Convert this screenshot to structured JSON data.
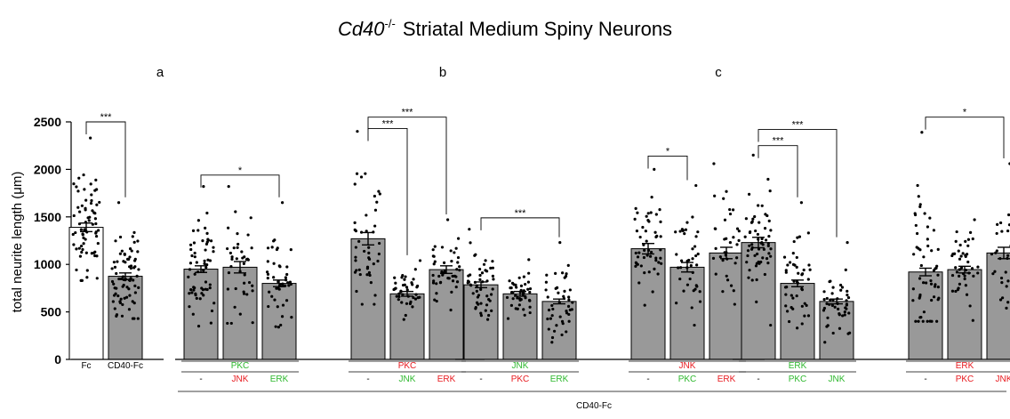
{
  "chart_data": {
    "type": "bar",
    "title": {
      "italic": "Cd40",
      "superscript": "-/-",
      "rest": "Striatal Medium Spiny Neurons"
    },
    "ylabel": "total neurite length (μm)",
    "ylim": [
      0,
      2500
    ],
    "yticks": [
      0,
      500,
      1000,
      1500,
      2000,
      2500
    ],
    "bottom_label": "CD40-Fc",
    "colors": {
      "bar": "#999999",
      "green": "#2db82d",
      "red": "#e8191e",
      "axis": "#000000"
    },
    "panels": [
      {
        "label": "",
        "groups": [
          {
            "header": "",
            "header_color": "",
            "bars": [
              {
                "label": "Fc",
                "label_color": "black",
                "value": 1390,
                "sem": 45,
                "fill": "white",
                "spread": [
                  830,
                  2330
                ],
                "n": 70
              },
              {
                "label": "CD40-Fc",
                "label_color": "black",
                "value": 875,
                "sem": 35,
                "fill": "gray",
                "spread": [
                  430,
                  1650
                ],
                "n": 75
              }
            ],
            "sigs": [
              {
                "from": 0,
                "to": 1,
                "stars": "***",
                "y": 2500
              }
            ]
          }
        ]
      },
      {
        "label": "a",
        "groups": [
          {
            "header": "PKC",
            "header_color": "green",
            "bars": [
              {
                "label": "-",
                "label_color": "black",
                "value": 950,
                "sem": 35,
                "fill": "gray",
                "spread": [
                  350,
                  1820
                ],
                "n": 60
              },
              {
                "label": "JNK",
                "label_color": "red",
                "value": 970,
                "sem": 60,
                "fill": "gray",
                "spread": [
                  380,
                  1820
                ],
                "n": 40
              },
              {
                "label": "ERK",
                "label_color": "green",
                "value": 800,
                "sem": 35,
                "fill": "gray",
                "spread": [
                  340,
                  1650
                ],
                "n": 45
              }
            ],
            "sigs": [
              {
                "from": 0,
                "to": 2,
                "stars": "*",
                "y": 1940
              }
            ]
          },
          {
            "header": "PKC",
            "header_color": "red",
            "bars": [
              {
                "label": "-",
                "label_color": "black",
                "value": 1270,
                "sem": 65,
                "fill": "gray",
                "spread": [
                  580,
                  2400
                ],
                "n": 45
              },
              {
                "label": "JNK",
                "label_color": "green",
                "value": 690,
                "sem": 25,
                "fill": "gray",
                "spread": [
                  420,
                  1040
                ],
                "n": 40
              },
              {
                "label": "ERK",
                "label_color": "red",
                "value": 945,
                "sem": 40,
                "fill": "gray",
                "spread": [
                  520,
                  1470
                ],
                "n": 45
              }
            ],
            "sigs": [
              {
                "from": 0,
                "to": 1,
                "stars": "***",
                "y": 2430
              },
              {
                "from": 0,
                "to": 2,
                "stars": "***",
                "y": 2550
              }
            ]
          }
        ]
      },
      {
        "label": "b",
        "groups": [
          {
            "header": "JNK",
            "header_color": "green",
            "bars": [
              {
                "label": "-",
                "label_color": "black",
                "value": 785,
                "sem": 30,
                "fill": "gray",
                "spread": [
                  420,
                  1370
                ],
                "n": 50
              },
              {
                "label": "PKC",
                "label_color": "red",
                "value": 690,
                "sem": 25,
                "fill": "gray",
                "spread": [
                  430,
                  1050
                ],
                "n": 45
              },
              {
                "label": "ERK",
                "label_color": "green",
                "value": 610,
                "sem": 25,
                "fill": "gray",
                "spread": [
                  180,
                  1230
                ],
                "n": 45
              }
            ],
            "sigs": [
              {
                "from": 0,
                "to": 2,
                "stars": "***",
                "y": 1490
              }
            ]
          },
          {
            "header": "JNK",
            "header_color": "red",
            "bars": [
              {
                "label": "-",
                "label_color": "black",
                "value": 1165,
                "sem": 55,
                "fill": "gray",
                "spread": [
                  570,
                  2000
                ],
                "n": 50
              },
              {
                "label": "PKC",
                "label_color": "green",
                "value": 970,
                "sem": 50,
                "fill": "gray",
                "spread": [
                  360,
                  1830
                ],
                "n": 40
              },
              {
                "label": "ERK",
                "label_color": "red",
                "value": 1120,
                "sem": 60,
                "fill": "gray",
                "spread": [
                  580,
                  2060
                ],
                "n": 35
              }
            ],
            "sigs": [
              {
                "from": 0,
                "to": 1,
                "stars": "*",
                "y": 2140
              }
            ]
          }
        ]
      },
      {
        "label": "c",
        "groups": [
          {
            "header": "ERK",
            "header_color": "green",
            "bars": [
              {
                "label": "-",
                "label_color": "black",
                "value": 1230,
                "sem": 55,
                "fill": "gray",
                "spread": [
                  360,
                  2150
                ],
                "n": 60
              },
              {
                "label": "PKC",
                "label_color": "green",
                "value": 800,
                "sem": 35,
                "fill": "gray",
                "spread": [
                  330,
                  1650
                ],
                "n": 45
              },
              {
                "label": "JNK",
                "label_color": "green",
                "value": 610,
                "sem": 25,
                "fill": "gray",
                "spread": [
                  180,
                  1230
                ],
                "n": 45
              }
            ],
            "sigs": [
              {
                "from": 0,
                "to": 1,
                "stars": "***",
                "y": 2250
              },
              {
                "from": 0,
                "to": 2,
                "stars": "***",
                "y": 2420
              }
            ]
          },
          {
            "header": "ERK",
            "header_color": "red",
            "bars": [
              {
                "label": "-",
                "label_color": "black",
                "value": 920,
                "sem": 40,
                "fill": "gray",
                "spread": [
                  400,
                  2390
                ],
                "n": 55
              },
              {
                "label": "PKC",
                "label_color": "red",
                "value": 945,
                "sem": 35,
                "fill": "gray",
                "spread": [
                  410,
                  1470
                ],
                "n": 45
              },
              {
                "label": "JNK",
                "label_color": "red",
                "value": 1120,
                "sem": 60,
                "fill": "gray",
                "spread": [
                  540,
                  2060
                ],
                "n": 35
              }
            ],
            "sigs": [
              {
                "from": 0,
                "to": 2,
                "stars": "*",
                "y": 2550
              }
            ]
          }
        ]
      }
    ]
  }
}
